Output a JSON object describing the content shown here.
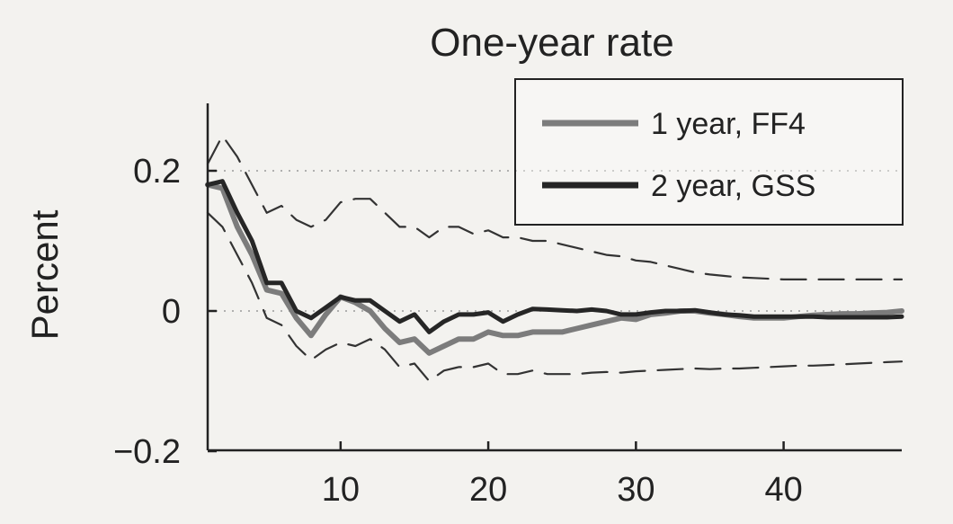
{
  "chart_data": {
    "type": "line",
    "title": "One-year rate",
    "xlabel": "",
    "ylabel": "Percent",
    "xlim": [
      1,
      48
    ],
    "ylim": [
      -0.2,
      0.3
    ],
    "xticks": [
      10,
      20,
      30,
      40
    ],
    "xtick_labels": [
      "10",
      "20",
      "30",
      "40"
    ],
    "yticks": [
      -0.2,
      0,
      0.2
    ],
    "ytick_labels": [
      "−0.2",
      "0",
      "0.2"
    ],
    "dotted_reference_lines": [
      0,
      0.2
    ],
    "legend_position": "top-right",
    "x": [
      1,
      2,
      3,
      4,
      5,
      6,
      7,
      8,
      9,
      10,
      11,
      12,
      13,
      14,
      15,
      16,
      17,
      18,
      19,
      20,
      21,
      22,
      23,
      24,
      25,
      26,
      27,
      28,
      29,
      30,
      31,
      32,
      33,
      34,
      35,
      36,
      37,
      38,
      39,
      40,
      41,
      42,
      43,
      44,
      45,
      46,
      47,
      48
    ],
    "series": [
      {
        "name": "1 year, FF4",
        "color": "#7c7c7c",
        "style": "solid",
        "values": [
          0.18,
          0.175,
          0.12,
          0.08,
          0.03,
          0.025,
          -0.01,
          -0.035,
          -0.005,
          0.02,
          0.012,
          0.0,
          -0.025,
          -0.045,
          -0.04,
          -0.06,
          -0.05,
          -0.04,
          -0.04,
          -0.03,
          -0.035,
          -0.035,
          -0.03,
          -0.03,
          -0.03,
          -0.025,
          -0.02,
          -0.015,
          -0.01,
          -0.012,
          -0.005,
          -0.003,
          0.0,
          0.0,
          -0.003,
          -0.005,
          -0.008,
          -0.01,
          -0.01,
          -0.01,
          -0.008,
          -0.006,
          -0.005,
          -0.004,
          -0.004,
          -0.003,
          -0.002,
          0.0
        ]
      },
      {
        "name": "2 year, GSS",
        "color": "#262626",
        "style": "solid",
        "values": [
          0.18,
          0.185,
          0.14,
          0.1,
          0.04,
          0.04,
          0.0,
          -0.01,
          0.005,
          0.02,
          0.015,
          0.015,
          0.0,
          -0.015,
          -0.005,
          -0.03,
          -0.015,
          -0.005,
          -0.005,
          -0.002,
          -0.015,
          -0.005,
          0.003,
          0.002,
          0.001,
          0.0,
          0.002,
          0.0,
          -0.005,
          -0.005,
          -0.002,
          0.0,
          0.0,
          0.001,
          -0.002,
          -0.005,
          -0.006,
          -0.008,
          -0.008,
          -0.008,
          -0.008,
          -0.008,
          -0.009,
          -0.009,
          -0.009,
          -0.009,
          -0.009,
          -0.008
        ]
      },
      {
        "color": "#333333",
        "style": "dashed",
        "values": [
          0.21,
          0.25,
          0.22,
          0.18,
          0.14,
          0.15,
          0.13,
          0.12,
          0.13,
          0.155,
          0.16,
          0.16,
          0.14,
          0.12,
          0.12,
          0.105,
          0.12,
          0.12,
          0.11,
          0.115,
          0.105,
          0.105,
          0.1,
          0.1,
          0.095,
          0.09,
          0.085,
          0.08,
          0.078,
          0.072,
          0.07,
          0.065,
          0.06,
          0.055,
          0.052,
          0.05,
          0.048,
          0.047,
          0.046,
          0.045,
          0.045,
          0.045,
          0.045,
          0.045,
          0.045,
          0.045,
          0.045,
          0.045
        ]
      },
      {
        "color": "#333333",
        "style": "dashed",
        "values": [
          0.14,
          0.12,
          0.08,
          0.04,
          -0.01,
          -0.02,
          -0.05,
          -0.07,
          -0.055,
          -0.045,
          -0.05,
          -0.04,
          -0.055,
          -0.08,
          -0.075,
          -0.1,
          -0.085,
          -0.08,
          -0.08,
          -0.075,
          -0.09,
          -0.09,
          -0.085,
          -0.09,
          -0.09,
          -0.09,
          -0.088,
          -0.087,
          -0.088,
          -0.086,
          -0.085,
          -0.084,
          -0.083,
          -0.082,
          -0.083,
          -0.082,
          -0.082,
          -0.081,
          -0.08,
          -0.079,
          -0.078,
          -0.078,
          -0.077,
          -0.076,
          -0.075,
          -0.074,
          -0.073,
          -0.072
        ]
      }
    ]
  }
}
